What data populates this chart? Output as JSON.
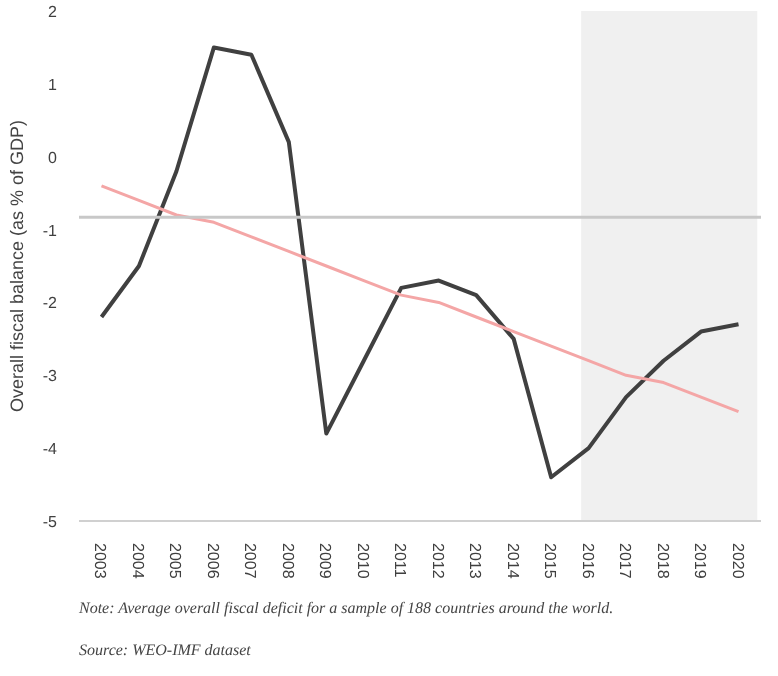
{
  "chart_data": {
    "type": "line",
    "ylabel": "Overall fiscal balance (as % of GDP)",
    "categories": [
      "2003",
      "2004",
      "2005",
      "2006",
      "2007",
      "2008",
      "2009",
      "2010",
      "2011",
      "2012",
      "2013",
      "2014",
      "2015",
      "2016",
      "2017",
      "2018",
      "2019",
      "2020"
    ],
    "series": [
      {
        "color": "#404040",
        "values": [
          -2.2,
          -1.5,
          -0.2,
          1.5,
          1.4,
          0.2,
          -3.8,
          -2.8,
          -1.8,
          -1.7,
          -1.9,
          -2.5,
          -4.4,
          -4.0,
          -3.3,
          -2.8,
          -2.4,
          -2.3
        ]
      },
      {
        "type": "line",
        "color": "#f4a6a6",
        "values": [
          -0.4,
          -0.6,
          -0.8,
          -0.9,
          -1.1,
          -1.3,
          -1.5,
          -1.7,
          -1.9,
          -2.0,
          -2.2,
          -2.4,
          -2.6,
          -2.8,
          -3.0,
          -3.1,
          -3.3,
          -3.5
        ]
      }
    ],
    "ylim": [
      -5,
      2
    ],
    "yticks": [
      -5,
      -4,
      -3,
      -2,
      -1,
      0,
      1,
      2
    ],
    "grid": false,
    "ref_lines": [
      {
        "axis": "y",
        "value": -0.83,
        "color": "#c8c8c8"
      }
    ],
    "bands": [
      {
        "axis": "x",
        "from": "2016",
        "to": "2020",
        "color": "#f0f0f0"
      }
    ],
    "annotations": [
      "Note: Average overall fiscal deficit for a sample of 188 countries around the world.",
      "Source: WEO-IMF dataset"
    ]
  }
}
